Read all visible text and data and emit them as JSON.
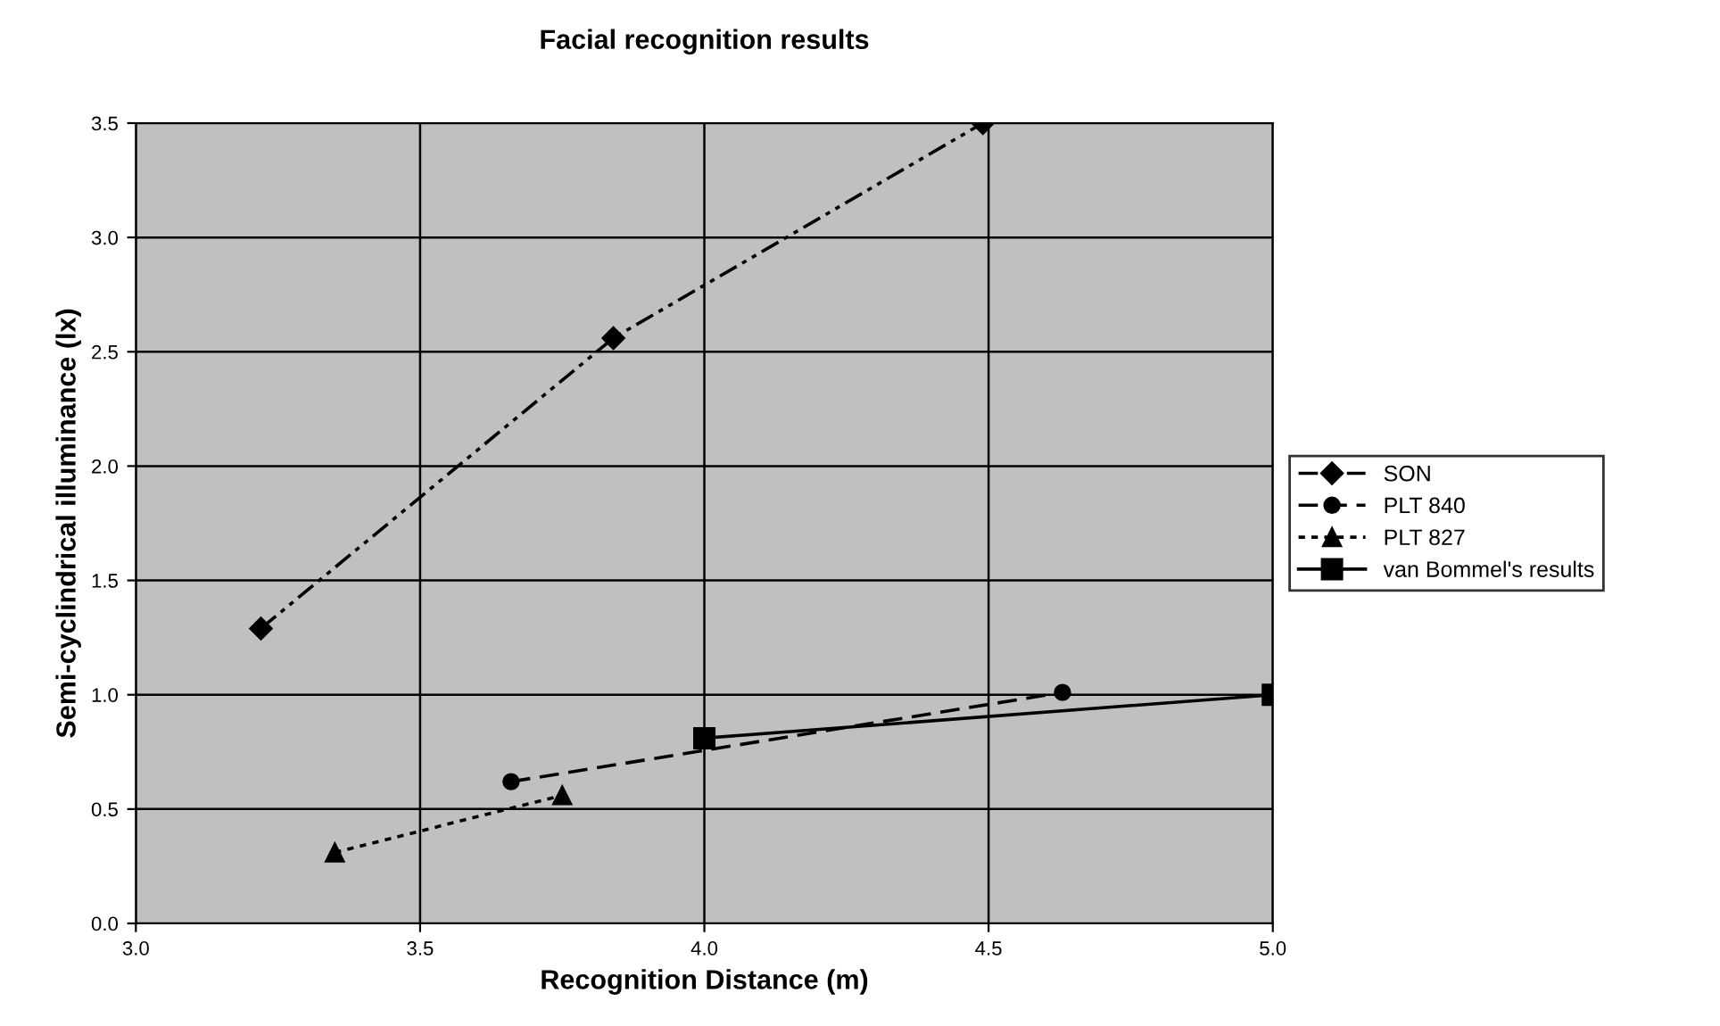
{
  "chart_data": {
    "type": "line",
    "title": "Facial recognition results",
    "xlabel": "Recognition Distance (m)",
    "ylabel": "Semi-cyclindrical illuminance (lx)",
    "xlim": [
      3,
      5
    ],
    "ylim": [
      0,
      3.5
    ],
    "xticks": [
      {
        "value": 3,
        "label": "3.0"
      },
      {
        "value": 3.5,
        "label": "3.5"
      },
      {
        "value": 4,
        "label": "4.0"
      },
      {
        "value": 4.5,
        "label": "4.5"
      },
      {
        "value": 5,
        "label": "5.0"
      }
    ],
    "yticks": [
      {
        "value": 0,
        "label": "0.0"
      },
      {
        "value": 0.5,
        "label": "0.5"
      },
      {
        "value": 1,
        "label": "1.0"
      },
      {
        "value": 1.5,
        "label": "1.5"
      },
      {
        "value": 2,
        "label": "2.0"
      },
      {
        "value": 2.5,
        "label": "2.5"
      },
      {
        "value": 3,
        "label": "3.0"
      },
      {
        "value": 3.5,
        "label": "3.5"
      }
    ],
    "grid": true,
    "legend": "right",
    "series": [
      {
        "name": "SON",
        "color": "#000000",
        "x": [
          3.22,
          3.84,
          4.49
        ],
        "values": [
          1.29,
          2.56,
          3.5
        ],
        "marker": "diamond",
        "line_style": "dashdot"
      },
      {
        "name": "PLT 840",
        "color": "#000000",
        "x": [
          3.66,
          4.63
        ],
        "values": [
          0.62,
          1.01
        ],
        "marker": "circle",
        "line_style": "dashed"
      },
      {
        "name": "PLT 827",
        "color": "#000000",
        "x": [
          3.35,
          3.75
        ],
        "values": [
          0.31,
          0.56
        ],
        "marker": "triangle",
        "line_style": "dotted"
      },
      {
        "name": "van Bommel's results",
        "color": "#000000",
        "x": [
          4.0,
          5.0
        ],
        "values": [
          0.81,
          1.0
        ],
        "marker": "square",
        "line_style": "solid"
      }
    ]
  }
}
